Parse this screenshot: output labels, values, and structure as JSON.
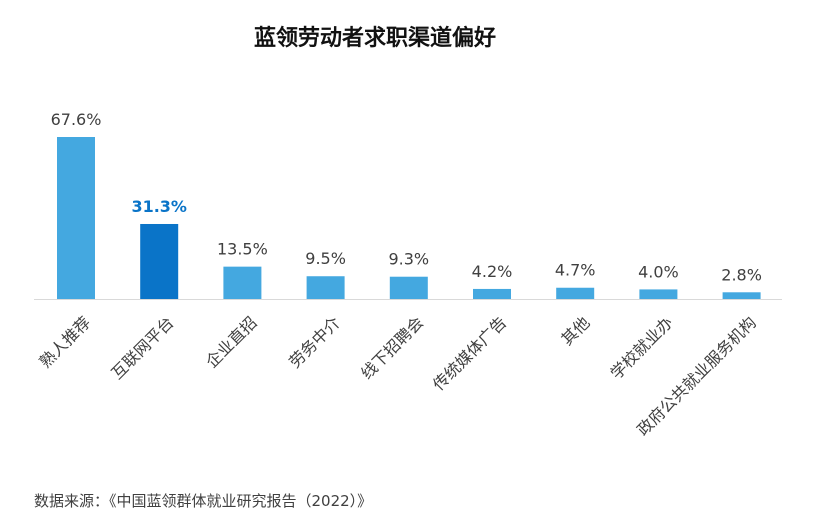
{
  "chart_data": {
    "type": "bar",
    "title": "蓝领劳动者求职渠道偏好",
    "categories": [
      "熟人推荐",
      "互联网平台",
      "企业直招",
      "劳务中介",
      "线下招聘会",
      "传统媒体广告",
      "其他",
      "学校就业办",
      "政府公共就业服务机构"
    ],
    "values": [
      67.6,
      31.3,
      13.5,
      9.5,
      9.3,
      4.2,
      4.7,
      4.0,
      2.8
    ],
    "value_labels": [
      "67.6%",
      "31.3%",
      "13.5%",
      "9.5%",
      "9.3%",
      "4.2%",
      "4.7%",
      "4.0%",
      "2.8%"
    ],
    "highlight_index": 1,
    "ylim": [
      0,
      67.6
    ],
    "grid": false,
    "colors": {
      "bar": "#44A8E0",
      "highlight": "#0A74C8",
      "highlight_label": "#0A74C8",
      "axis": "#D9D9D9"
    }
  },
  "source": "数据来源：《中国蓝领群体就业研究报告（2022）》"
}
